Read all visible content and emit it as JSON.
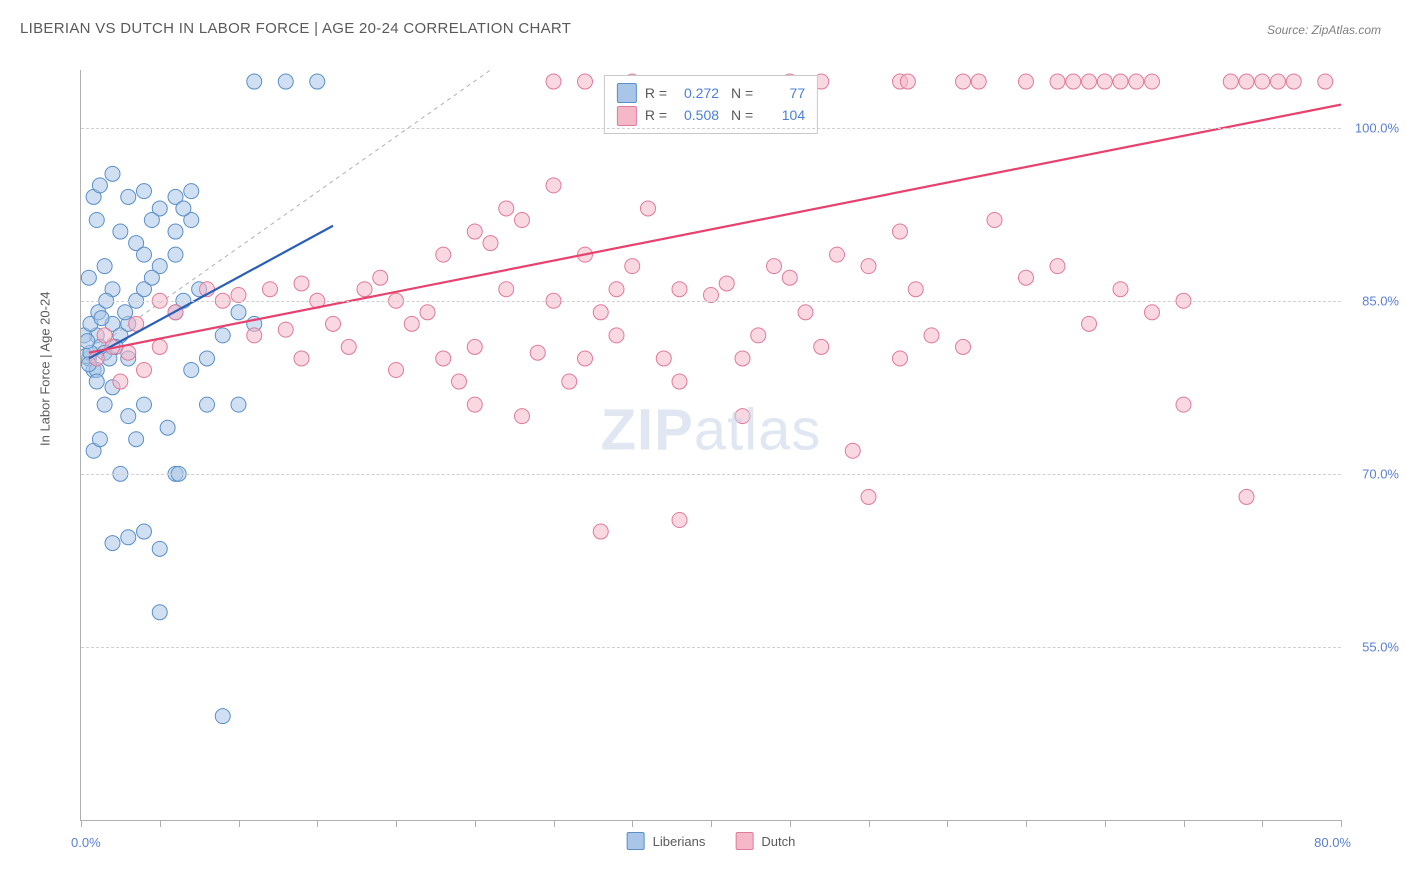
{
  "title": "LIBERIAN VS DUTCH IN LABOR FORCE | AGE 20-24 CORRELATION CHART",
  "source": "Source: ZipAtlas.com",
  "y_axis_label": "In Labor Force | Age 20-24",
  "watermark_a": "ZIP",
  "watermark_b": "atlas",
  "chart": {
    "type": "scatter",
    "xlim": [
      0,
      80
    ],
    "ylim": [
      40,
      105
    ],
    "x_min_label": "0.0%",
    "x_max_label": "80.0%",
    "y_ticks": [
      55,
      70,
      85,
      100
    ],
    "y_tick_labels": [
      "55.0%",
      "70.0%",
      "85.0%",
      "100.0%"
    ],
    "x_tick_positions": [
      0,
      5,
      10,
      15,
      20,
      25,
      30,
      35,
      40,
      45,
      50,
      55,
      60,
      65,
      70,
      75,
      80
    ],
    "gridlines_y_at": [
      55,
      70,
      85,
      100
    ],
    "background_color": "#ffffff",
    "grid_color": "#d0d0d0",
    "diagonal_line": {
      "x1": 0,
      "y1": 80,
      "x2": 26,
      "y2": 105,
      "stroke": "#b0b0b0",
      "dash": "4,4",
      "width": 1
    },
    "series": [
      {
        "name": "Liberians",
        "marker": "circle",
        "marker_radius": 7.5,
        "fill": "#a9c6e8",
        "stroke": "#5a8fc8",
        "fill_opacity": 0.55,
        "trend_line": {
          "x1": 0.5,
          "y1": 80,
          "x2": 16,
          "y2": 91.5,
          "stroke": "#2a5fb8",
          "width": 2.2
        },
        "stats": {
          "R": "0.272",
          "N": "77"
        },
        "points": [
          [
            0.5,
            80
          ],
          [
            1,
            82
          ],
          [
            0.8,
            79
          ],
          [
            1.2,
            81
          ],
          [
            1.5,
            80.5
          ],
          [
            0.3,
            80.2
          ],
          [
            2,
            83
          ],
          [
            1.8,
            80
          ],
          [
            2.5,
            82
          ],
          [
            2.2,
            81
          ],
          [
            1,
            79
          ],
          [
            0.6,
            80.5
          ],
          [
            3,
            83
          ],
          [
            2.8,
            84
          ],
          [
            3.5,
            85
          ],
          [
            4,
            86
          ],
          [
            1,
            78
          ],
          [
            1.5,
            76
          ],
          [
            2,
            77.5
          ],
          [
            0.5,
            79.5
          ],
          [
            5,
            88
          ],
          [
            6,
            89
          ],
          [
            4.5,
            87
          ],
          [
            3,
            80
          ],
          [
            0.8,
            94
          ],
          [
            1.2,
            95
          ],
          [
            2,
            96
          ],
          [
            3,
            94
          ],
          [
            4,
            94.5
          ],
          [
            5,
            93
          ],
          [
            1,
            92
          ],
          [
            2.5,
            91
          ],
          [
            3.5,
            90
          ],
          [
            4,
            89
          ],
          [
            6,
            91
          ],
          [
            7,
            92
          ],
          [
            1.5,
            88
          ],
          [
            0.5,
            87
          ],
          [
            2,
            86
          ],
          [
            11,
            104
          ],
          [
            13,
            104
          ],
          [
            15,
            104
          ],
          [
            6,
            94
          ],
          [
            6.5,
            93
          ],
          [
            7,
            94.5
          ],
          [
            4.5,
            92
          ],
          [
            0.2,
            82
          ],
          [
            0.4,
            81.5
          ],
          [
            0.6,
            83
          ],
          [
            1.1,
            84
          ],
          [
            1.3,
            83.5
          ],
          [
            1.6,
            85
          ],
          [
            3,
            75
          ],
          [
            4,
            76
          ],
          [
            3.5,
            73
          ],
          [
            2,
            64
          ],
          [
            3,
            64.5
          ],
          [
            4,
            65
          ],
          [
            5,
            63.5
          ],
          [
            2.5,
            70
          ],
          [
            6,
            70
          ],
          [
            6.2,
            70
          ],
          [
            5,
            58
          ],
          [
            9,
            49
          ],
          [
            5.5,
            74
          ],
          [
            0.8,
            72
          ],
          [
            1.2,
            73
          ],
          [
            8,
            76
          ],
          [
            10,
            76
          ],
          [
            7,
            79
          ],
          [
            8,
            80
          ],
          [
            9,
            82
          ],
          [
            11,
            83
          ],
          [
            10,
            84
          ],
          [
            6,
            84
          ],
          [
            6.5,
            85
          ],
          [
            7.5,
            86
          ]
        ]
      },
      {
        "name": "Dutch",
        "marker": "circle",
        "marker_radius": 7.5,
        "fill": "#f5b8c8",
        "stroke": "#e07a9a",
        "fill_opacity": 0.55,
        "trend_line": {
          "x1": 0.5,
          "y1": 80.5,
          "x2": 80,
          "y2": 102,
          "stroke": "#e8416e",
          "width": 2.2
        },
        "stats": {
          "R": "0.508",
          "N": "104"
        },
        "points": [
          [
            1,
            80
          ],
          [
            2,
            81
          ],
          [
            3,
            80.5
          ],
          [
            2.5,
            78
          ],
          [
            4,
            79
          ],
          [
            1.5,
            82
          ],
          [
            3.5,
            83
          ],
          [
            5,
            81
          ],
          [
            5,
            85
          ],
          [
            6,
            84
          ],
          [
            8,
            86
          ],
          [
            9,
            85
          ],
          [
            10,
            85.5
          ],
          [
            12,
            86
          ],
          [
            14,
            86.5
          ],
          [
            15,
            85
          ],
          [
            11,
            82
          ],
          [
            13,
            82.5
          ],
          [
            16,
            83
          ],
          [
            17,
            81
          ],
          [
            14,
            80
          ],
          [
            18,
            86
          ],
          [
            19,
            87
          ],
          [
            20,
            85
          ],
          [
            22,
            84
          ],
          [
            21,
            83
          ],
          [
            20,
            79
          ],
          [
            23,
            80
          ],
          [
            24,
            78
          ],
          [
            25,
            81
          ],
          [
            23,
            89
          ],
          [
            25,
            91
          ],
          [
            26,
            90
          ],
          [
            27,
            93
          ],
          [
            28,
            92
          ],
          [
            27,
            86
          ],
          [
            30,
            85
          ],
          [
            31,
            78
          ],
          [
            32,
            80
          ],
          [
            29,
            80.5
          ],
          [
            30,
            95
          ],
          [
            32,
            89
          ],
          [
            34,
            86
          ],
          [
            35,
            88
          ],
          [
            36,
            93
          ],
          [
            33,
            84
          ],
          [
            34,
            82
          ],
          [
            38,
            86
          ],
          [
            40,
            85.5
          ],
          [
            42,
            80
          ],
          [
            43,
            82
          ],
          [
            44,
            88
          ],
          [
            45,
            87
          ],
          [
            46,
            84
          ],
          [
            48,
            89
          ],
          [
            47,
            81
          ],
          [
            37,
            80
          ],
          [
            38,
            78
          ],
          [
            41,
            86.5
          ],
          [
            50,
            88
          ],
          [
            52,
            80
          ],
          [
            52,
            91
          ],
          [
            53,
            86
          ],
          [
            54,
            82
          ],
          [
            49,
            72
          ],
          [
            42,
            75
          ],
          [
            38,
            66
          ],
          [
            33,
            65
          ],
          [
            25,
            76
          ],
          [
            28,
            75
          ],
          [
            56,
            81
          ],
          [
            58,
            92
          ],
          [
            60,
            87
          ],
          [
            62,
            88
          ],
          [
            64,
            83
          ],
          [
            66,
            86
          ],
          [
            68,
            84
          ],
          [
            70,
            85
          ],
          [
            70,
            76
          ],
          [
            45,
            104
          ],
          [
            47,
            104
          ],
          [
            52,
            104
          ],
          [
            52.5,
            104
          ],
          [
            60,
            104
          ],
          [
            74,
            68
          ],
          [
            50,
            68
          ],
          [
            56,
            104
          ],
          [
            57,
            104
          ],
          [
            62,
            104
          ],
          [
            63,
            104
          ],
          [
            64,
            104
          ],
          [
            65,
            104
          ],
          [
            66,
            104
          ],
          [
            67,
            104
          ],
          [
            68,
            104
          ],
          [
            73,
            104
          ],
          [
            74,
            104
          ],
          [
            75,
            104
          ],
          [
            76,
            104
          ],
          [
            77,
            104
          ],
          [
            79,
            104
          ],
          [
            32,
            104
          ],
          [
            35,
            104
          ],
          [
            30,
            104
          ]
        ]
      }
    ]
  },
  "legend": {
    "series1": {
      "label": "Liberians",
      "fill": "#a9c6e8",
      "stroke": "#5a8fc8"
    },
    "series2": {
      "label": "Dutch",
      "fill": "#f5b8c8",
      "stroke": "#e07a9a"
    }
  }
}
